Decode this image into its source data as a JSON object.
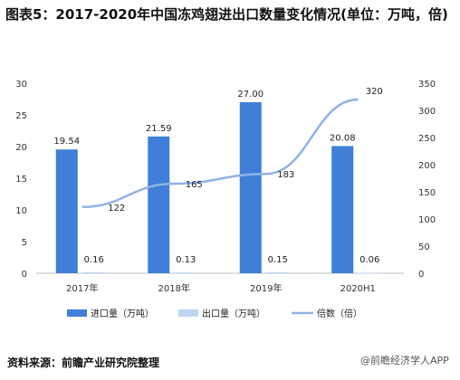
{
  "title": "图表5：2017-2020年中国冻鸡翅进出口数量变化情况(单位：万吨，倍)",
  "source": "资料来源：前瞻产业研究院整理",
  "watermark": "@前瞻经济学人APP",
  "colors": {
    "import": "#3f7fd8",
    "export": "#bcd5f2",
    "ratio": "#8fb2e4"
  },
  "chart_data": {
    "type": "bar",
    "categories": [
      "2017年",
      "2018年",
      "2019年",
      "2020H1"
    ],
    "series": [
      {
        "name": "进口量（万吨）",
        "axis": "left",
        "kind": "bar",
        "values": [
          19.54,
          21.59,
          27.0,
          20.08
        ],
        "labels": [
          "19.54",
          "21.59",
          "27.00",
          "20.08"
        ]
      },
      {
        "name": "出口量（万吨）",
        "axis": "left",
        "kind": "bar",
        "values": [
          0.16,
          0.13,
          0.15,
          0.06
        ],
        "labels": [
          "0.16",
          "0.13",
          "0.15",
          "0.06"
        ]
      },
      {
        "name": "倍数（倍）",
        "axis": "right",
        "kind": "line",
        "values": [
          122,
          165,
          183,
          320
        ],
        "labels": [
          "122",
          "165",
          "183",
          "320"
        ]
      }
    ],
    "y_left": {
      "min": 0,
      "max": 30,
      "ticks": [
        "0",
        "5",
        "10",
        "15",
        "20",
        "25",
        "30"
      ]
    },
    "y_right": {
      "min": 0,
      "max": 350,
      "ticks": [
        "0",
        "50",
        "100",
        "150",
        "200",
        "250",
        "300",
        "350"
      ]
    },
    "legend_position": "bottom",
    "grid": false
  }
}
